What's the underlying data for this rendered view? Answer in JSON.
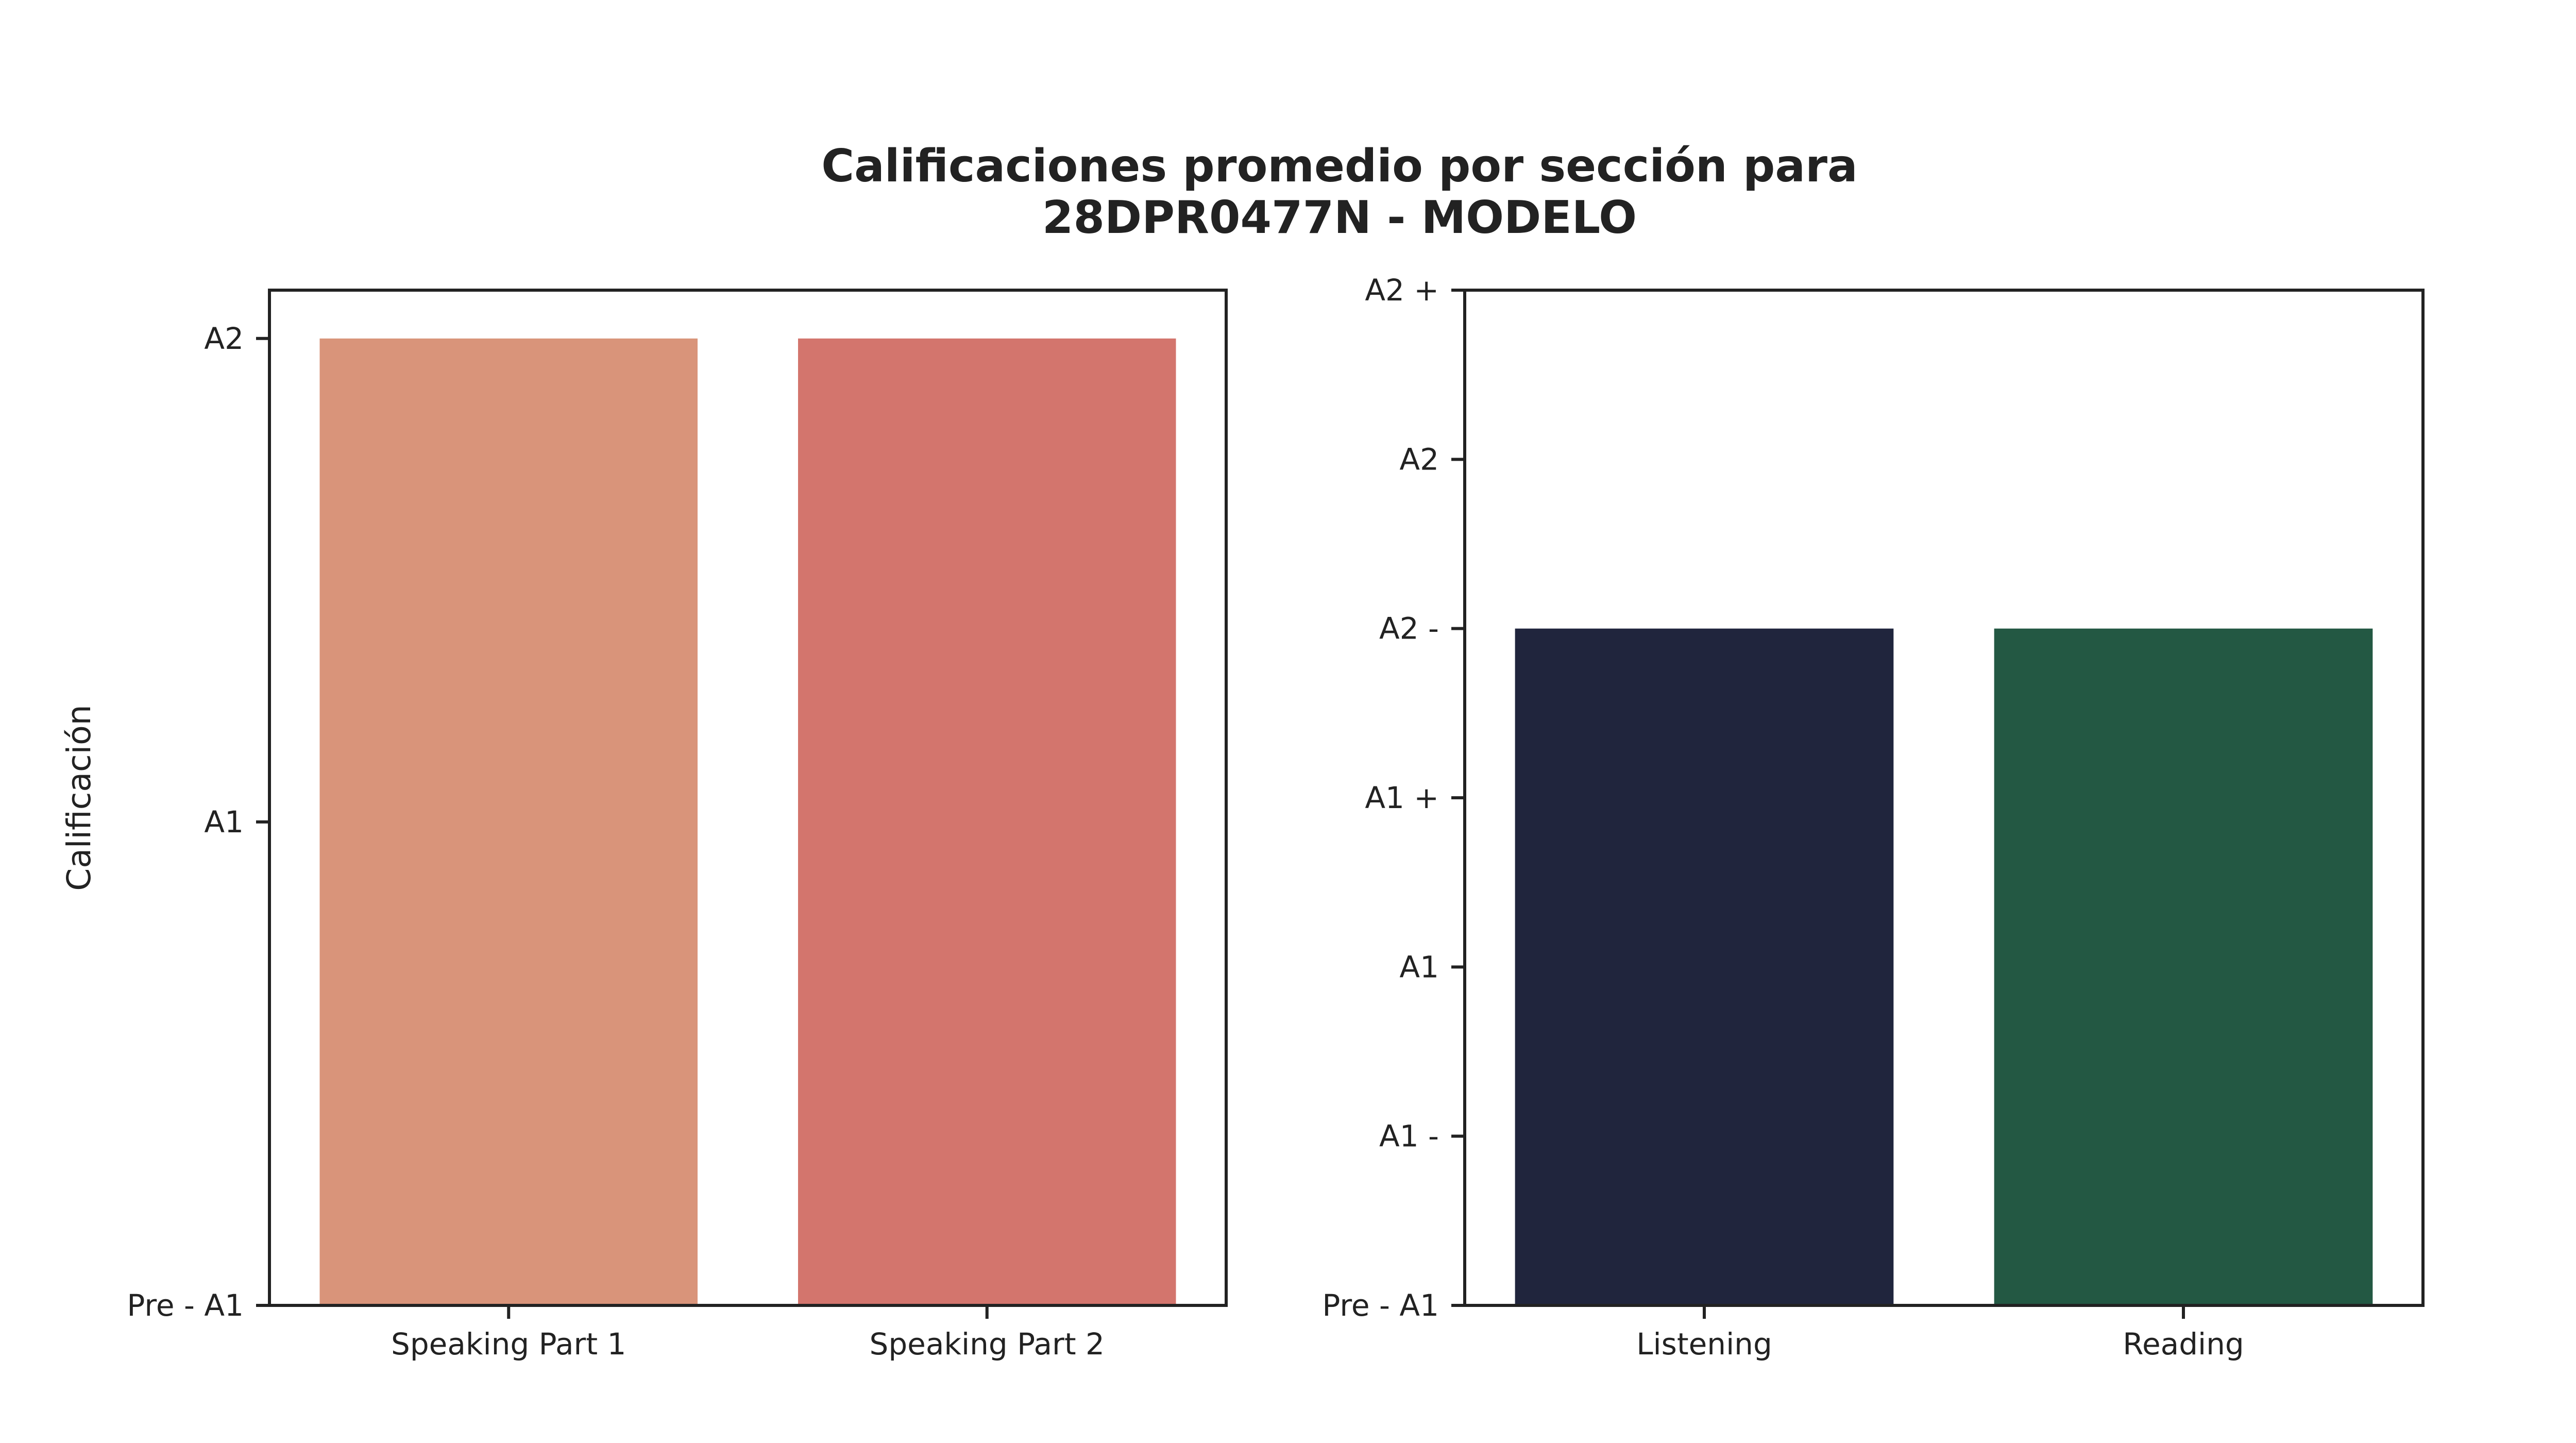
{
  "title": {
    "line1": "Calificaciones promedio por sección para",
    "line2": "28DPR0477N - MODELO"
  },
  "chart_data": [
    {
      "type": "bar",
      "ylabel": "Calificación",
      "y_ticks": [
        {
          "value": 0,
          "label": "Pre - A1"
        },
        {
          "value": 1,
          "label": "A1"
        },
        {
          "value": 2,
          "label": "A2"
        }
      ],
      "ylim": [
        0,
        2.1
      ],
      "categories": [
        "Speaking Part 1",
        "Speaking Part 2"
      ],
      "values": [
        2,
        2
      ],
      "colors": [
        "#d9947a",
        "#d3756d"
      ]
    },
    {
      "type": "bar",
      "ylabel": "",
      "y_ticks": [
        {
          "value": 0,
          "label": "Pre - A1"
        },
        {
          "value": 1,
          "label": "A1 -"
        },
        {
          "value": 2,
          "label": "A1"
        },
        {
          "value": 3,
          "label": "A1 +"
        },
        {
          "value": 4,
          "label": "A2 -"
        },
        {
          "value": 5,
          "label": "A2"
        },
        {
          "value": 6,
          "label": "A2 +"
        }
      ],
      "ylim": [
        0,
        6
      ],
      "categories": [
        "Listening",
        "Reading"
      ],
      "values": [
        4,
        4
      ],
      "colors": [
        "#20253d",
        "#235843"
      ]
    }
  ]
}
